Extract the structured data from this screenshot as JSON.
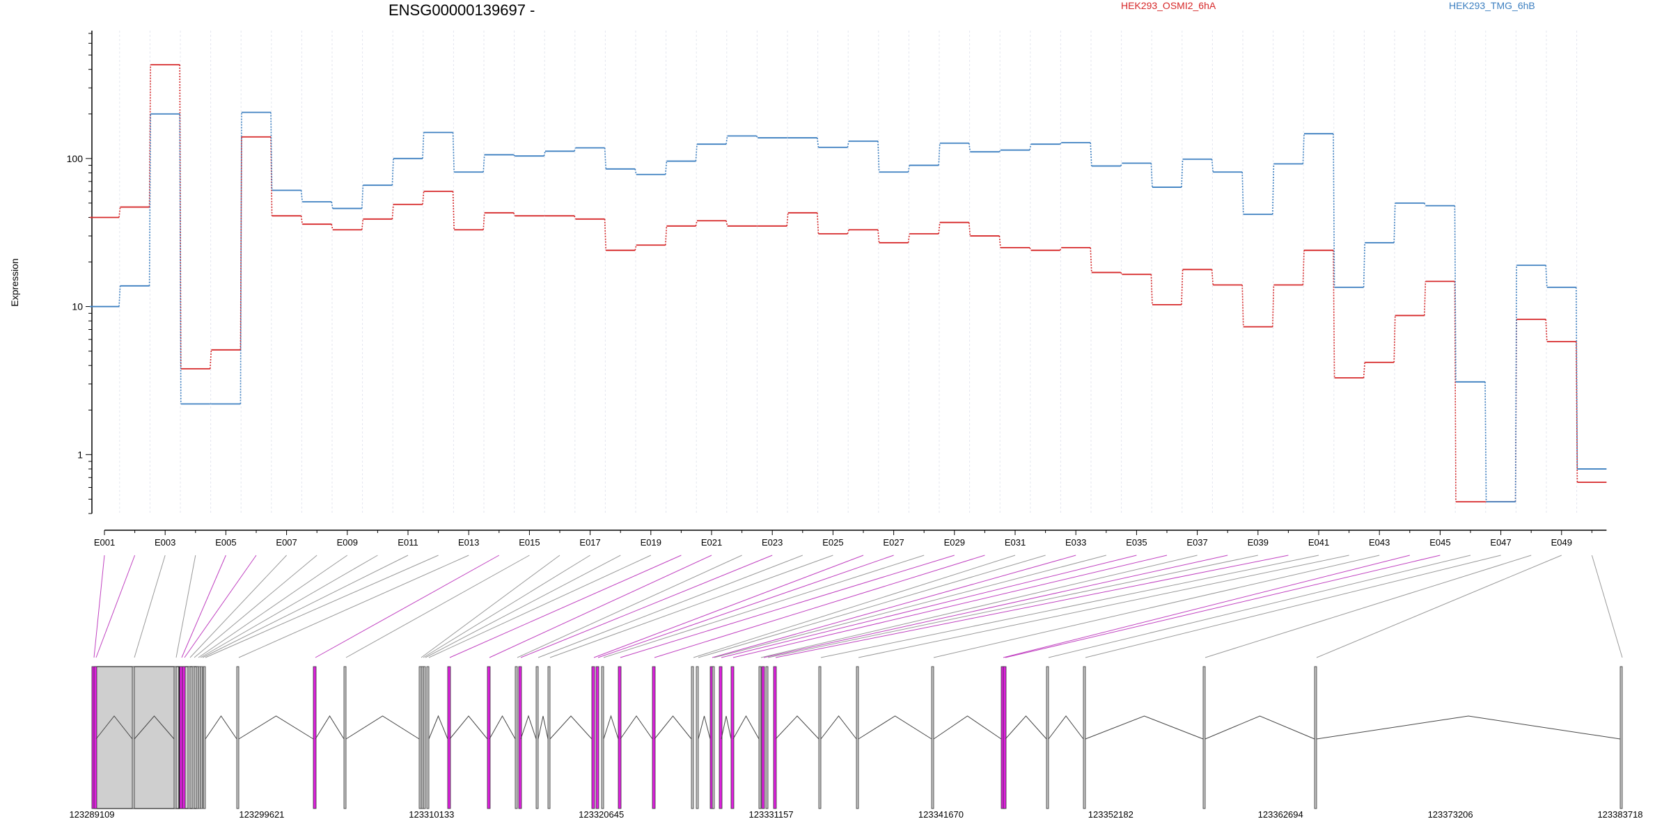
{
  "chart_data": {
    "type": "line",
    "title": "ENSG00000139697 -",
    "ylabel": "Expression",
    "xlabel": "",
    "y_scale": "log",
    "ylim": [
      0.4,
      700
    ],
    "y_ticks": [
      1,
      10,
      100
    ],
    "y_tick_labels": [
      "1",
      "10",
      "100"
    ],
    "grid": "vertical dotted lines at each exon",
    "legend": "top-right, text only",
    "x": [
      "E001",
      "E002",
      "E003",
      "E004",
      "E005",
      "E006",
      "E007",
      "E008",
      "E009",
      "E010",
      "E011",
      "E012",
      "E013",
      "E014",
      "E015",
      "E016",
      "E017",
      "E018",
      "E019",
      "E020",
      "E021",
      "E022",
      "E023",
      "E024",
      "E025",
      "E026",
      "E027",
      "E028",
      "E029",
      "E030",
      "E031",
      "E032",
      "E033",
      "E034",
      "E035",
      "E036",
      "E037",
      "E038",
      "E039",
      "E040",
      "E041",
      "E042",
      "E043",
      "E044",
      "E045",
      "E046",
      "E047",
      "E048",
      "E049",
      "E050"
    ],
    "x_tick_labels": [
      "E001",
      "E003",
      "E005",
      "E007",
      "E009",
      "E011",
      "E013",
      "E015",
      "E017",
      "E019",
      "E021",
      "E023",
      "E025",
      "E027",
      "E029",
      "E031",
      "E033",
      "E035",
      "E037",
      "E039",
      "E041",
      "E043",
      "E045",
      "E047",
      "E049"
    ],
    "series": [
      {
        "name": "HEK293_OSMI2_6hA",
        "color": "#d62728",
        "values": [
          40,
          47,
          430,
          3.8,
          5.1,
          140,
          41,
          36,
          33,
          39,
          49,
          60,
          33,
          43,
          41,
          41,
          39,
          24,
          26,
          35,
          38,
          35,
          35,
          43,
          31,
          33,
          27,
          31,
          37,
          30,
          25,
          24,
          25,
          17,
          16.5,
          10.3,
          17.8,
          14,
          7.3,
          14,
          24,
          3.3,
          4.2,
          8.7,
          14.8,
          0.48,
          0.48,
          8.2,
          5.8,
          0.65
        ]
      },
      {
        "name": "HEK293_TMG_6hB",
        "color": "#3c7fc0",
        "values": [
          10,
          13.8,
          200,
          2.2,
          2.2,
          205,
          61,
          51,
          46,
          66,
          100,
          150,
          81,
          106,
          104,
          112,
          118,
          85,
          78,
          96,
          125,
          142,
          138,
          138,
          119,
          131,
          81,
          90,
          127,
          111,
          114,
          125,
          128,
          89,
          93,
          64,
          99,
          81,
          42,
          92,
          147,
          13.5,
          27,
          50,
          48,
          3.1,
          0.48,
          19,
          13.5,
          0.8
        ]
      }
    ],
    "genomic_coordinate_labels": [
      "123289109",
      "123299621",
      "123310133",
      "123320645",
      "123331157",
      "123341670",
      "123352182",
      "123362694",
      "123373206",
      "123383718"
    ],
    "exon_highlight_color": "#e020e0"
  }
}
